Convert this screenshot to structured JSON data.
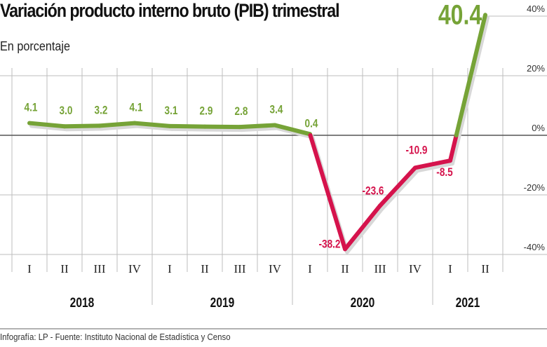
{
  "title": "Variación producto interno bruto (PIB) trimestral",
  "subtitle": "En porcentaje",
  "footer": "Infografía: LP - Fuente: Instituto Nacional de Estadística y Censo",
  "colors": {
    "positive": "#76a337",
    "negative": "#d5134c",
    "grid": "#bdbdbd",
    "axis": "#555555"
  },
  "chart_data": {
    "type": "line",
    "title": "Variación producto interno bruto (PIB) trimestral",
    "subtitle": "En porcentaje",
    "categories": [
      "I",
      "II",
      "III",
      "IV",
      "I",
      "II",
      "III",
      "IV",
      "I",
      "II",
      "III",
      "IV",
      "I",
      "II"
    ],
    "years": [
      {
        "label": "2018",
        "quarters": 4
      },
      {
        "label": "2019",
        "quarters": 4
      },
      {
        "label": "2020",
        "quarters": 4
      },
      {
        "label": "2021",
        "quarters": 2
      }
    ],
    "values": [
      4.1,
      3.0,
      3.2,
      4.1,
      3.1,
      2.9,
      2.8,
      3.4,
      0.4,
      -38.2,
      -23.6,
      -10.9,
      -8.5,
      40.4
    ],
    "data_labels": [
      "4.1",
      "3.0",
      "3.2",
      "4.1",
      "3.1",
      "2.9",
      "2.8",
      "3.4",
      "0.4",
      "-38.2",
      "-23.6",
      "-10.9",
      "-8.5",
      "40.4"
    ],
    "y_ticks": [
      40,
      20,
      0,
      -20,
      -40
    ],
    "y_tick_labels": [
      "40%",
      "20%",
      "0%",
      "-20%",
      "-40%"
    ],
    "ylim": [
      -40,
      40
    ],
    "y_axis_side": "right",
    "grid": true,
    "color_rule": "green when positive, red when negative"
  }
}
